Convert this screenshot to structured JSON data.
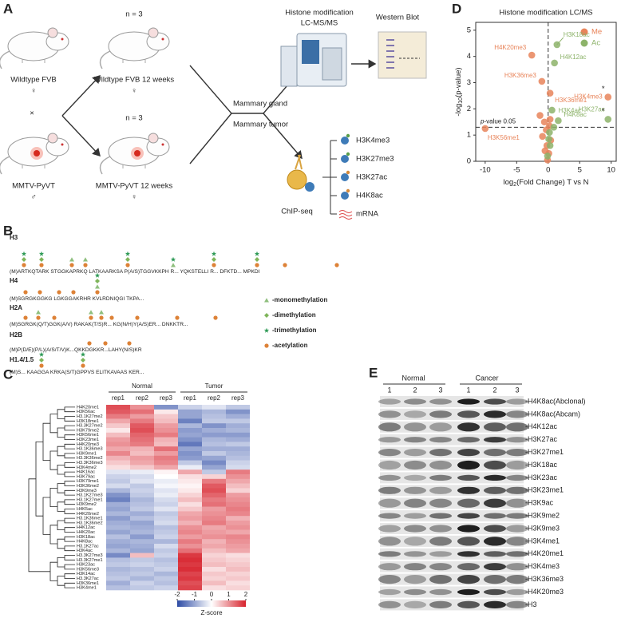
{
  "panel_labels": [
    "A",
    "B",
    "C",
    "D",
    "E"
  ],
  "panel_a": {
    "n_labels": [
      "n = 3",
      "n = 3"
    ],
    "mice": [
      {
        "label": "Wildtype FVB",
        "sex": "♀"
      },
      {
        "label": "Wildtype FVB 12 weeks",
        "sex": "♀"
      },
      {
        "label": "MMTV-PyVT",
        "sex": "♂"
      },
      {
        "label": "MMTV-PyVT 12 weeks",
        "sex": "♀"
      }
    ],
    "cross": "×",
    "tissues": [
      "Mammary gland",
      "Mammary tumor"
    ],
    "methods": [
      "Histone modification",
      "LC-MS/MS",
      "Western Blot",
      "ChIP-seq"
    ],
    "chip_targets": [
      "H3K4me3",
      "H3K27me3",
      "H3K27ac",
      "H4K8ac",
      "mRNA"
    ]
  },
  "panel_b": {
    "histones": [
      {
        "name": "H3",
        "sequence": "(M)ARTKQTARK STGGKAPRKQ LATKAARKSA P(A/S)TGGVKKPH R... YQKSTELLI R... DFKTD...   MPKDI"
      },
      {
        "name": "H4",
        "sequence": "(M)SGRGKGGKG LGKGGAKRHR KVLRDNIQGI TKPA..."
      },
      {
        "name": "H2A",
        "sequence": "(M)SGRGK(Q/T)GGK(A/V) RAKAK(T/S)R... KG(N/H)Y(A/S)ER... DNKKTR..."
      },
      {
        "name": "H2B",
        "sequence": "(M)P(D/E)(P/L)(A/S/T/V)K...QKKDGKKR...LAHY(N/S)KR"
      },
      {
        "name": "H1.4/1.5",
        "sequence": "(M)S... KAAGGA KRKA(S/T)GPPVS ELITKAVAAS KER..."
      }
    ],
    "legend": [
      "-monomethylation",
      "-dimethylation",
      "-trimethylation",
      "-acetylation"
    ]
  },
  "chart_data": [
    {
      "type": "heatmap",
      "group_labels": [
        "Normal",
        "Tumor"
      ],
      "columns": [
        "rep1",
        "rep2",
        "rep3",
        "rep1",
        "rep2",
        "rep3"
      ],
      "rows": [
        "H4K20me1",
        "H3K56ac",
        "H3.1K27me2",
        "H3K18me1",
        "H3.3K27me2",
        "H3K79me2",
        "H3K56me1",
        "H3K23me1",
        "H4K20me3",
        "H3.1K36me3",
        "H3K9me1",
        "H3.3K36me2",
        "H3.3K36me3",
        "H3K4me2",
        "H4K16ac",
        "H3K79ac",
        "H3K79me1",
        "H3K36me2",
        "H3K9me3",
        "H3.1K27me3",
        "H3.1K27me1",
        "H3K9me2",
        "H4K5ac",
        "H4K20me2",
        "H3.1K36me1",
        "H3.1K36me2",
        "H4K12ac",
        "H4K20ac",
        "H3K18ac",
        "H4K8ac",
        "H3.1K27ac",
        "H3K4ac",
        "H3.3K27me3",
        "H3.3K27me1",
        "H3K23ac",
        "H3K56me3",
        "H3K14ac",
        "H3.3K27ac",
        "H3K36me1",
        "H3K4me1"
      ],
      "values": [
        [
          1.6,
          1.0,
          -1.2,
          -0.5,
          -0.3,
          -0.6
        ],
        [
          1.5,
          1.3,
          0.2,
          -1.0,
          -0.8,
          -1.2
        ],
        [
          1.2,
          0.9,
          0.5,
          -1.0,
          -0.7,
          -0.9
        ],
        [
          0.8,
          1.2,
          0.6,
          -1.4,
          -0.6,
          -0.6
        ],
        [
          0.5,
          1.5,
          0.9,
          -0.8,
          -1.2,
          -0.9
        ],
        [
          0.2,
          1.6,
          1.0,
          -1.1,
          -0.9,
          -0.8
        ],
        [
          0.6,
          1.4,
          1.2,
          -1.0,
          -1.1,
          -1.1
        ],
        [
          0.9,
          1.3,
          0.7,
          -1.2,
          -0.8,
          -0.9
        ],
        [
          1.0,
          1.2,
          0.6,
          -1.5,
          -0.7,
          -0.6
        ],
        [
          0.8,
          0.7,
          1.3,
          -1.0,
          -0.9,
          -0.9
        ],
        [
          1.1,
          0.6,
          0.9,
          -1.2,
          -0.6,
          -0.8
        ],
        [
          0.7,
          0.9,
          1.2,
          -1.1,
          -1.0,
          -0.7
        ],
        [
          0.5,
          0.8,
          1.1,
          -0.6,
          -1.3,
          -0.5
        ],
        [
          0.3,
          0.5,
          0.8,
          -0.2,
          -1.0,
          -0.4
        ],
        [
          -0.3,
          -0.2,
          0.1,
          0.8,
          -0.6,
          1.2
        ],
        [
          -0.5,
          -0.4,
          0.0,
          0.3,
          0.4,
          1.0
        ],
        [
          -0.6,
          -0.3,
          -0.2,
          0.2,
          1.2,
          0.8
        ],
        [
          -0.4,
          -0.6,
          -0.1,
          0.1,
          1.5,
          0.6
        ],
        [
          -0.8,
          -0.5,
          -0.3,
          0.2,
          1.6,
          0.4
        ],
        [
          -1.2,
          -0.6,
          -0.2,
          0.4,
          1.4,
          0.9
        ],
        [
          -1.4,
          -0.8,
          -0.4,
          0.6,
          1.2,
          1.0
        ],
        [
          -0.9,
          -0.7,
          -0.5,
          0.3,
          1.3,
          1.1
        ],
        [
          -1.0,
          -0.6,
          -0.3,
          0.5,
          0.9,
          1.2
        ],
        [
          -0.8,
          -0.9,
          -0.6,
          0.8,
          1.0,
          1.1
        ],
        [
          -1.1,
          -0.7,
          -0.5,
          0.9,
          1.1,
          0.7
        ],
        [
          -0.9,
          -1.0,
          -0.4,
          0.7,
          1.2,
          0.9
        ],
        [
          -0.8,
          -0.9,
          -0.7,
          1.0,
          0.8,
          1.0
        ],
        [
          -1.0,
          -0.8,
          -0.6,
          1.1,
          0.9,
          0.8
        ],
        [
          -0.7,
          -1.1,
          -0.5,
          0.9,
          1.0,
          1.1
        ],
        [
          -0.9,
          -0.8,
          -0.8,
          1.2,
          0.7,
          1.0
        ],
        [
          -1.0,
          -0.9,
          -0.4,
          1.0,
          0.8,
          0.9
        ],
        [
          -0.8,
          -1.0,
          -0.6,
          1.3,
          0.6,
          0.8
        ],
        [
          -1.3,
          0.6,
          -0.5,
          1.8,
          0.4,
          0.3
        ],
        [
          -0.7,
          -0.6,
          -0.7,
          1.9,
          0.5,
          0.4
        ],
        [
          -0.6,
          -0.5,
          -0.6,
          1.8,
          0.6,
          0.5
        ],
        [
          -0.8,
          -0.7,
          -0.5,
          1.9,
          0.3,
          0.6
        ],
        [
          -0.7,
          -0.6,
          -0.8,
          1.7,
          0.5,
          0.4
        ],
        [
          -0.6,
          -0.8,
          -0.6,
          1.8,
          0.4,
          0.5
        ],
        [
          -0.9,
          -0.5,
          -0.7,
          1.6,
          0.6,
          0.3
        ],
        [
          -0.7,
          -0.6,
          -0.5,
          1.7,
          0.3,
          0.4
        ]
      ],
      "colorbar": {
        "label": "Z-score",
        "lim": [
          -2,
          2
        ],
        "ticks": [
          -2,
          -1,
          0,
          1,
          2
        ]
      }
    },
    {
      "type": "scatter",
      "title": "Histone modification LC/MS",
      "xlabel": {
        "text": "log",
        "sub": "2",
        "rest": "(Fold Change) T vs N"
      },
      "ylabel": {
        "text": "-log",
        "sub": "10",
        "rest": "(p-value)"
      },
      "xlim": [
        -11.5,
        10.8
      ],
      "xticks": [
        -10,
        -5,
        0,
        5,
        10
      ],
      "ylim": [
        0,
        5.3
      ],
      "yticks": [
        0,
        1,
        2,
        3,
        4,
        5
      ],
      "vline_x": 0,
      "threshold": {
        "y": 1.3,
        "italic": "p",
        "text": "-value 0.05"
      },
      "legend": "upper right",
      "annotations": [
        "*",
        "*"
      ],
      "series": [
        {
          "name": "Me",
          "color": "#e8845a",
          "x": [
            -10,
            -2.6,
            -1.0,
            0.3,
            9.5,
            -1.3,
            -0.6,
            -0.3,
            0.2,
            -0.9,
            0.4,
            -0.2,
            0.1,
            -0.5,
            0.3,
            -0.1
          ],
          "values": [
            1.25,
            4.05,
            3.05,
            2.6,
            2.45,
            1.75,
            1.5,
            1.2,
            1.35,
            0.95,
            0.8,
            0.6,
            0.3,
            0.4,
            1.6,
            0.05
          ],
          "labels": [
            "H3K56me1",
            "H4K20me3",
            "H3K36me3",
            "H3K36me1",
            "H3K4me3",
            null,
            null,
            null,
            null,
            null,
            null,
            null,
            null,
            null,
            null,
            null
          ]
        },
        {
          "name": "Ac",
          "color": "#8db36a",
          "x": [
            1.4,
            1.0,
            9.5,
            0.6,
            1.6,
            0.2,
            0.9,
            -0.1,
            0.3,
            0.1
          ],
          "values": [
            4.45,
            3.75,
            1.6,
            1.95,
            1.55,
            1.1,
            1.3,
            0.2,
            0.6,
            0.85
          ],
          "labels": [
            "H3K18ac",
            "H4K12ac",
            "H3K27ac",
            "H3K4ac",
            "H4K8ac",
            null,
            null,
            null,
            null,
            null
          ]
        }
      ]
    }
  ],
  "panel_e": {
    "groups": [
      "Normal",
      "Cancer"
    ],
    "lanes": [
      "1",
      "2",
      "3",
      "1",
      "2",
      "3"
    ],
    "antibodies": [
      "-H4K8ac(Abclonal)",
      "-H4K8ac(Abcam)",
      "-H4K12ac",
      "-H3K27ac",
      "-H3K27me1",
      "-H3K18ac",
      "-H3K23ac",
      "-H3K23me1",
      "-H3K9ac",
      "-H3K9me2",
      "-H3K9me3",
      "-H3K4me1",
      "-H4K20me1",
      "-H3K4me3",
      "-H3K36me3",
      "-H4K20me3",
      "-H3"
    ]
  }
}
